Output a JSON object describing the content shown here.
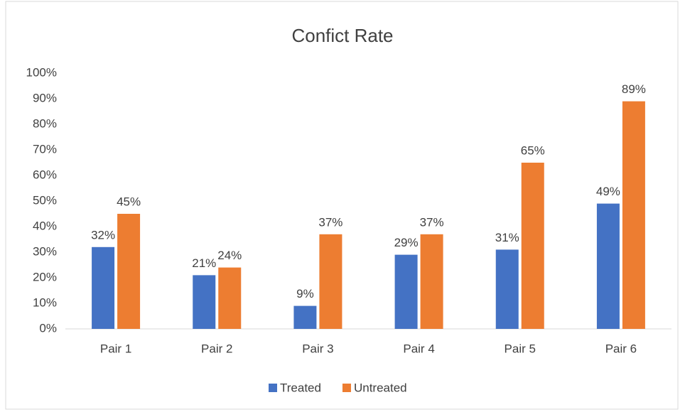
{
  "chart_data": {
    "type": "bar",
    "title": "Confict Rate",
    "categories": [
      "Pair 1",
      "Pair 2",
      "Pair 3",
      "Pair 4",
      "Pair 5",
      "Pair 6"
    ],
    "series": [
      {
        "name": "Treated",
        "color": "#4472c4",
        "values": [
          32,
          21,
          9,
          29,
          31,
          49
        ],
        "value_labels": [
          "32%",
          "21%",
          "9%",
          "29%",
          "31%",
          "49%"
        ]
      },
      {
        "name": "Untreated",
        "color": "#ed7d31",
        "values": [
          45,
          24,
          37,
          37,
          65,
          89
        ],
        "value_labels": [
          "45%",
          "24%",
          "37%",
          "37%",
          "65%",
          "89%"
        ]
      }
    ],
    "ylim": [
      0,
      100
    ],
    "yticks": [
      {
        "value": 0,
        "label": "0%"
      },
      {
        "value": 10,
        "label": "10%"
      },
      {
        "value": 20,
        "label": "20%"
      },
      {
        "value": 30,
        "label": "30%"
      },
      {
        "value": 40,
        "label": "40%"
      },
      {
        "value": 50,
        "label": "50%"
      },
      {
        "value": 60,
        "label": "60%"
      },
      {
        "value": 70,
        "label": "70%"
      },
      {
        "value": 80,
        "label": "80%"
      },
      {
        "value": 90,
        "label": "90%"
      },
      {
        "value": 100,
        "label": "100%"
      }
    ],
    "legend": "bottom"
  }
}
